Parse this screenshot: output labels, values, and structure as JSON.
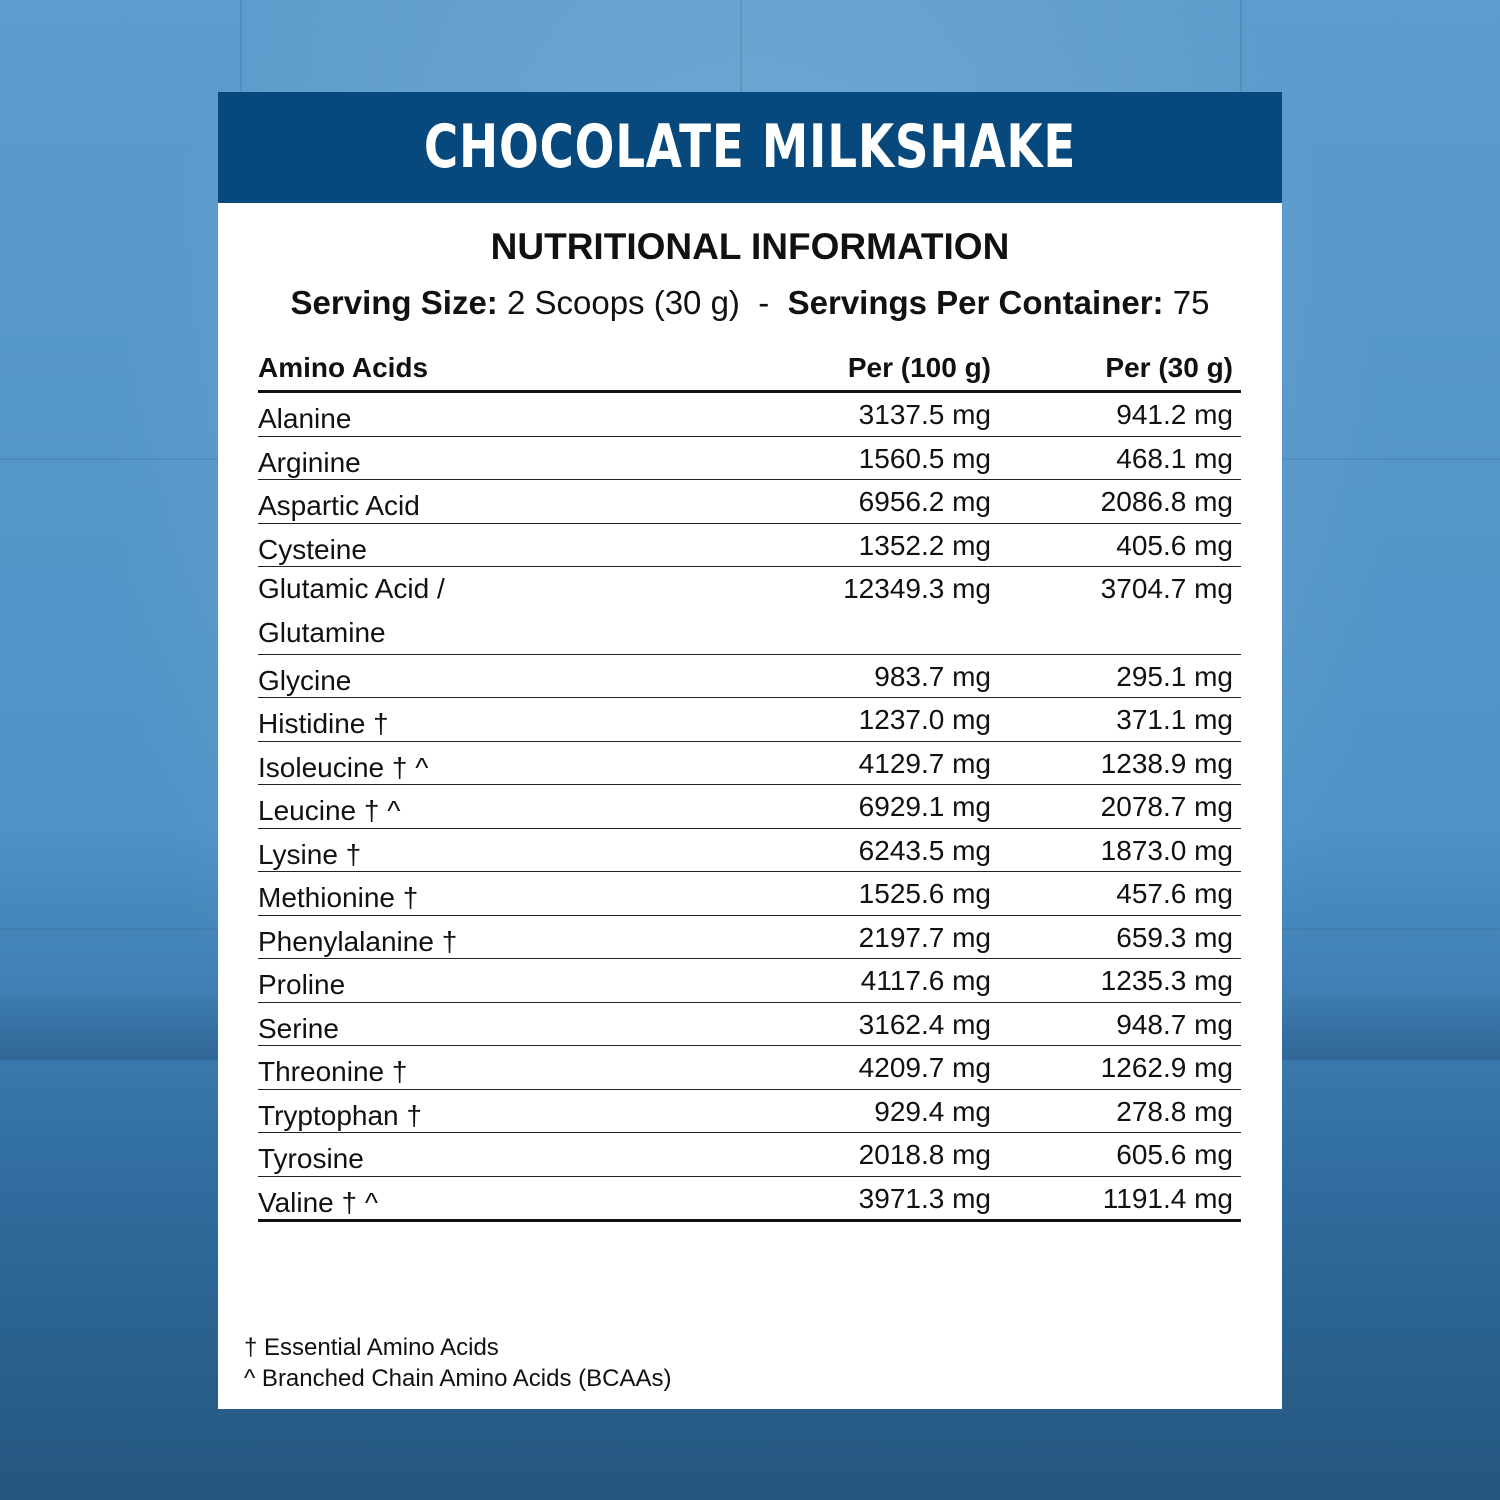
{
  "title": "CHOCOLATE MILKSHAKE",
  "section_title": "NUTRITIONAL INFORMATION",
  "serving": {
    "size_label": "Serving Size:",
    "size_value": "2 Scoops (30 g)",
    "separator": "-",
    "per_container_label": "Servings Per Container:",
    "per_container_value": "75"
  },
  "table": {
    "headers": [
      "Amino Acids",
      "Per (100 g)",
      "Per  (30 g)"
    ],
    "rows": [
      {
        "name": "Alanine",
        "per100": "3137.5 mg",
        "per30": "941.2 mg"
      },
      {
        "name": "Arginine",
        "per100": "1560.5 mg",
        "per30": "468.1 mg"
      },
      {
        "name": "Aspartic Acid",
        "per100": "6956.2 mg",
        "per30": "2086.8 mg"
      },
      {
        "name": "Cysteine",
        "per100": "1352.2 mg",
        "per30": "405.6 mg"
      },
      {
        "name": "Glutamic Acid / Glutamine",
        "per100": "12349.3 mg",
        "per30": "3704.7 mg"
      },
      {
        "name": "Glycine",
        "per100": "983.7 mg",
        "per30": "295.1 mg"
      },
      {
        "name": "Histidine †",
        "per100": "1237.0 mg",
        "per30": "371.1 mg"
      },
      {
        "name": "Isoleucine † ^",
        "per100": "4129.7 mg",
        "per30": "1238.9 mg"
      },
      {
        "name": "Leucine † ^",
        "per100": "6929.1 mg",
        "per30": "2078.7 mg"
      },
      {
        "name": "Lysine †",
        "per100": "6243.5 mg",
        "per30": "1873.0 mg"
      },
      {
        "name": "Methionine †",
        "per100": "1525.6 mg",
        "per30": "457.6 mg"
      },
      {
        "name": "Phenylalanine †",
        "per100": "2197.7 mg",
        "per30": "659.3 mg"
      },
      {
        "name": "Proline",
        "per100": "4117.6 mg",
        "per30": "1235.3 mg"
      },
      {
        "name": "Serine",
        "per100": "3162.4 mg",
        "per30": "948.7 mg"
      },
      {
        "name": "Threonine †",
        "per100": "4209.7 mg",
        "per30": "1262.9 mg"
      },
      {
        "name": "Tryptophan †",
        "per100": "929.4 mg",
        "per30": "278.8 mg"
      },
      {
        "name": "Tyrosine",
        "per100": "2018.8 mg",
        "per30": "605.6 mg"
      },
      {
        "name": "Valine † ^",
        "per100": "3971.3 mg",
        "per30": "1191.4 mg"
      }
    ]
  },
  "footnotes": [
    "† Essential Amino Acids",
    "^ Branched Chain Amino Acids (BCAAs)"
  ],
  "colors": {
    "banner": "#07497d",
    "background": "#4f92c6"
  }
}
